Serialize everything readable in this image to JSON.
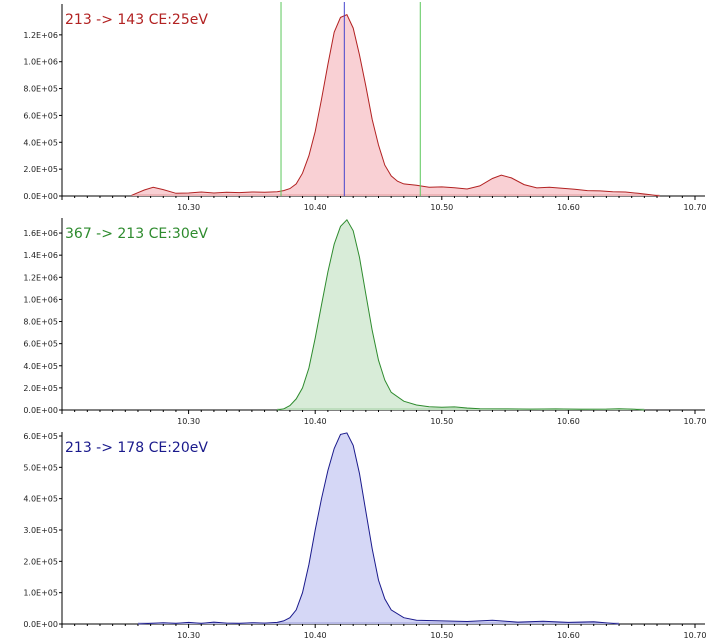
{
  "chart_data": [
    {
      "type": "area",
      "title": "213 -> 143 CE:25eV",
      "color": "#b22222",
      "fill": "#f9d0d4",
      "xlim": [
        10.2,
        10.7
      ],
      "ylim": [
        0,
        1400000
      ],
      "xticks": [
        "10.30",
        "10.40",
        "10.50",
        "10.60",
        "10.70"
      ],
      "yticks": [
        "0.0E+00",
        "2.0E+05",
        "4.0E+05",
        "6.0E+05",
        "8.0E+05",
        "1.0E+06",
        "1.2E+06"
      ],
      "annotations": {
        "integration_bounds_x": [
          10.373,
          10.483
        ],
        "bound_color": "#5cc85c",
        "apex_x": 10.423,
        "apex_color": "#4444cc"
      },
      "series": [
        {
          "x": [
            10.255,
            10.265,
            10.272,
            10.28,
            10.29,
            10.3,
            10.31,
            10.32,
            10.33,
            10.34,
            10.35,
            10.36,
            10.37,
            10.375,
            10.38,
            10.385,
            10.39,
            10.395,
            10.4,
            10.405,
            10.41,
            10.415,
            10.42,
            10.425,
            10.43,
            10.435,
            10.44,
            10.445,
            10.45,
            10.455,
            10.46,
            10.465,
            10.47,
            10.48,
            10.49,
            10.5,
            10.51,
            10.52,
            10.53,
            10.54,
            10.547,
            10.555,
            10.565,
            10.575,
            10.585,
            10.595,
            10.605,
            10.615,
            10.625,
            10.635,
            10.645,
            10.655,
            10.665,
            10.672
          ],
          "y": [
            5000,
            45000,
            65000,
            48000,
            20000,
            22000,
            30000,
            22000,
            28000,
            25000,
            30000,
            28000,
            32000,
            40000,
            55000,
            90000,
            170000,
            300000,
            480000,
            720000,
            980000,
            1220000,
            1330000,
            1350000,
            1250000,
            1050000,
            820000,
            570000,
            380000,
            230000,
            150000,
            110000,
            90000,
            80000,
            65000,
            68000,
            62000,
            52000,
            75000,
            130000,
            155000,
            135000,
            85000,
            60000,
            65000,
            58000,
            50000,
            40000,
            38000,
            32000,
            30000,
            20000,
            10000,
            0
          ]
        }
      ]
    },
    {
      "type": "area",
      "title": "367 -> 213 CE:30eV",
      "color": "#2e8b2e",
      "fill": "#d8ecd8",
      "xlim": [
        10.2,
        10.7
      ],
      "ylim": [
        0,
        1700000
      ],
      "xticks": [
        "10.30",
        "10.40",
        "10.50",
        "10.60",
        "10.70"
      ],
      "yticks": [
        "0.0E+00",
        "2.0E+05",
        "4.0E+05",
        "6.0E+05",
        "8.0E+05",
        "1.0E+06",
        "1.2E+06",
        "1.4E+06",
        "1.6E+06"
      ],
      "series": [
        {
          "x": [
            10.37,
            10.375,
            10.38,
            10.385,
            10.39,
            10.395,
            10.4,
            10.405,
            10.41,
            10.415,
            10.42,
            10.425,
            10.43,
            10.435,
            10.44,
            10.445,
            10.45,
            10.455,
            10.46,
            10.47,
            10.48,
            10.49,
            10.5,
            10.51,
            10.52,
            10.53,
            10.55,
            10.57,
            10.59,
            10.61,
            10.63,
            10.64,
            10.65,
            10.66
          ],
          "y": [
            0,
            10000,
            40000,
            100000,
            200000,
            380000,
            650000,
            950000,
            1250000,
            1500000,
            1660000,
            1720000,
            1620000,
            1380000,
            1050000,
            720000,
            450000,
            270000,
            160000,
            80000,
            45000,
            30000,
            25000,
            28000,
            18000,
            12000,
            10000,
            8000,
            10000,
            6000,
            8000,
            12000,
            8000,
            0
          ]
        }
      ]
    },
    {
      "type": "area",
      "title": "213 -> 178 CE:20eV",
      "color": "#1a1a8c",
      "fill": "#d5d7f6",
      "xlim": [
        10.2,
        10.7
      ],
      "ylim": [
        0,
        600000
      ],
      "xticks": [
        "10.30",
        "10.40",
        "10.50",
        "10.60",
        "10.70"
      ],
      "yticks": [
        "0.0E+00",
        "1.0E+05",
        "2.0E+05",
        "3.0E+05",
        "4.0E+05",
        "5.0E+05",
        "6.0E+05"
      ],
      "series": [
        {
          "x": [
            10.26,
            10.28,
            10.29,
            10.3,
            10.31,
            10.32,
            10.33,
            10.34,
            10.35,
            10.36,
            10.37,
            10.375,
            10.38,
            10.385,
            10.39,
            10.395,
            10.4,
            10.405,
            10.41,
            10.415,
            10.42,
            10.425,
            10.43,
            10.435,
            10.44,
            10.445,
            10.45,
            10.455,
            10.46,
            10.47,
            10.48,
            10.5,
            10.52,
            10.54,
            10.56,
            10.58,
            10.6,
            10.62,
            10.64
          ],
          "y": [
            0,
            4000,
            2000,
            5000,
            2000,
            6000,
            3000,
            2000,
            4000,
            3000,
            5000,
            10000,
            20000,
            45000,
            100000,
            190000,
            300000,
            400000,
            490000,
            560000,
            605000,
            610000,
            570000,
            480000,
            360000,
            240000,
            140000,
            80000,
            45000,
            20000,
            12000,
            10000,
            8000,
            12000,
            6000,
            9000,
            5000,
            7000,
            0
          ]
        }
      ]
    }
  ]
}
